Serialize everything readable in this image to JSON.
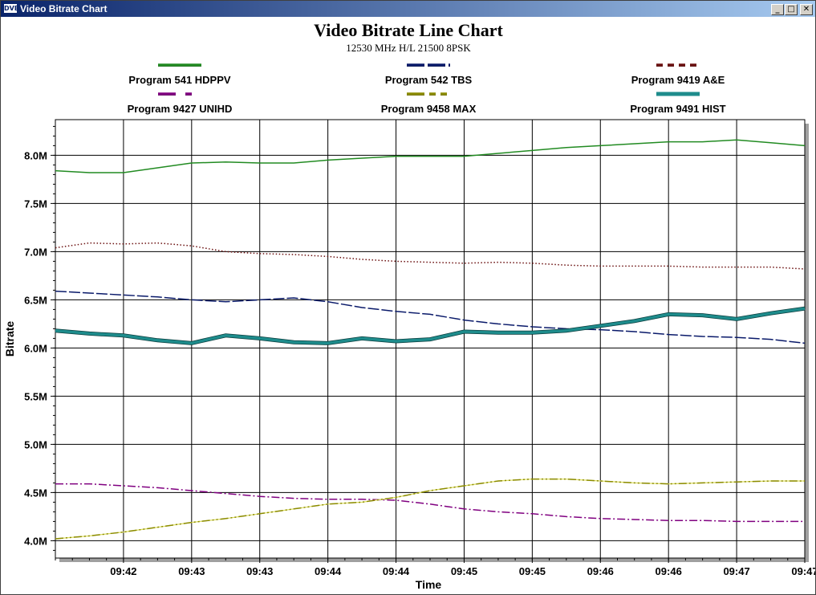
{
  "window": {
    "title": "Video Bitrate Chart",
    "icon_text": "DVB",
    "minimize_glyph": "_",
    "maximize_glyph": "□",
    "close_glyph": "✕"
  },
  "chart_data": {
    "type": "line",
    "title": "Video Bitrate Line Chart",
    "subtitle": "12530 MHz H/L 21500 8PSK",
    "xlabel": "Time",
    "ylabel": "Bitrate",
    "x_ticks": [
      "09:42",
      "09:43",
      "09:43",
      "09:44",
      "09:44",
      "09:45",
      "09:45",
      "09:46",
      "09:46",
      "09:47",
      "09:47"
    ],
    "y_ticks": [
      {
        "value": 4.0,
        "label": "4.0M"
      },
      {
        "value": 4.5,
        "label": "4.5M"
      },
      {
        "value": 5.0,
        "label": "5.0M"
      },
      {
        "value": 5.5,
        "label": "5.5M"
      },
      {
        "value": 6.0,
        "label": "6.0M"
      },
      {
        "value": 6.5,
        "label": "6.5M"
      },
      {
        "value": 7.0,
        "label": "7.0M"
      },
      {
        "value": 7.5,
        "label": "7.5M"
      },
      {
        "value": 8.0,
        "label": "8.0M"
      }
    ],
    "ylim": [
      3.82,
      8.37
    ],
    "xlim": [
      0,
      11.0
    ],
    "grid": true,
    "legend_position": "top",
    "series": [
      {
        "name": "Program 541 HDPPV",
        "color": "#228b22",
        "style": "solid",
        "width": 1.5,
        "x": [
          0,
          0.5,
          1,
          1.5,
          2,
          2.5,
          3,
          3.5,
          4,
          4.5,
          5,
          5.5,
          6,
          6.5,
          7,
          7.5,
          8,
          8.5,
          9,
          9.5,
          10,
          10.5,
          11
        ],
        "y": [
          7.84,
          7.82,
          7.82,
          7.87,
          7.92,
          7.93,
          7.92,
          7.92,
          7.95,
          7.97,
          7.99,
          7.99,
          7.99,
          8.02,
          8.05,
          8.08,
          8.1,
          8.12,
          8.14,
          8.14,
          8.16,
          8.13,
          8.1
        ]
      },
      {
        "name": "Program 542 TBS",
        "color": "#0a1a6a",
        "style": "longdash",
        "width": 1.5,
        "x": [
          0,
          0.5,
          1,
          1.5,
          2,
          2.5,
          3,
          3.5,
          4,
          4.5,
          5,
          5.5,
          6,
          6.5,
          7,
          7.5,
          8,
          8.5,
          9,
          9.5,
          10,
          10.5,
          11
        ],
        "y": [
          6.59,
          6.57,
          6.55,
          6.53,
          6.5,
          6.48,
          6.5,
          6.52,
          6.48,
          6.42,
          6.38,
          6.35,
          6.29,
          6.25,
          6.22,
          6.2,
          6.19,
          6.17,
          6.14,
          6.12,
          6.11,
          6.09,
          6.05
        ]
      },
      {
        "name": "Program 9419 A&E",
        "color": "#6b1010",
        "style": "dotted",
        "width": 1.5,
        "x": [
          0,
          0.5,
          1,
          1.5,
          2,
          2.5,
          3,
          3.5,
          4,
          4.5,
          5,
          5.5,
          6,
          6.5,
          7,
          7.5,
          8,
          8.5,
          9,
          9.5,
          10,
          10.5,
          11
        ],
        "y": [
          7.04,
          7.09,
          7.08,
          7.09,
          7.06,
          7.0,
          6.98,
          6.97,
          6.95,
          6.92,
          6.9,
          6.89,
          6.88,
          6.89,
          6.88,
          6.86,
          6.85,
          6.85,
          6.85,
          6.84,
          6.84,
          6.84,
          6.82
        ]
      },
      {
        "name": "Program 9427 UNIHD",
        "color": "#800080",
        "style": "dashdot",
        "width": 1.5,
        "x": [
          0,
          0.5,
          1,
          1.5,
          2,
          2.5,
          3,
          3.5,
          4,
          4.5,
          5,
          5.5,
          6,
          6.5,
          7,
          7.5,
          8,
          8.5,
          9,
          9.5,
          10,
          10.5,
          11
        ],
        "y": [
          4.59,
          4.59,
          4.57,
          4.55,
          4.52,
          4.49,
          4.46,
          4.44,
          4.43,
          4.43,
          4.42,
          4.38,
          4.33,
          4.3,
          4.28,
          4.25,
          4.23,
          4.22,
          4.21,
          4.21,
          4.2,
          4.2,
          4.2
        ]
      },
      {
        "name": "Program 9458 MAX",
        "color": "#8b8b00",
        "style": "dashdotdot",
        "width": 1.5,
        "x": [
          0,
          0.5,
          1,
          1.5,
          2,
          2.5,
          3,
          3.5,
          4,
          4.5,
          5,
          5.5,
          6,
          6.5,
          7,
          7.5,
          8,
          8.5,
          9,
          9.5,
          10,
          10.5,
          11
        ],
        "y": [
          4.02,
          4.05,
          4.09,
          4.14,
          4.19,
          4.23,
          4.28,
          4.33,
          4.38,
          4.4,
          4.45,
          4.52,
          4.57,
          4.62,
          4.64,
          4.64,
          4.62,
          4.6,
          4.59,
          4.6,
          4.61,
          4.62,
          4.62
        ]
      },
      {
        "name": "Program 9491 HIST",
        "color": "#1e8c8c",
        "style": "thick",
        "width": 3.5,
        "x": [
          0,
          0.5,
          1,
          1.5,
          2,
          2.5,
          3,
          3.5,
          4,
          4.5,
          5,
          5.5,
          6,
          6.5,
          7,
          7.5,
          8,
          8.5,
          9,
          9.5,
          10,
          10.5,
          11
        ],
        "y": [
          6.18,
          6.15,
          6.13,
          6.08,
          6.05,
          6.13,
          6.1,
          6.06,
          6.05,
          6.1,
          6.07,
          6.09,
          6.17,
          6.16,
          6.16,
          6.18,
          6.23,
          6.28,
          6.35,
          6.34,
          6.3,
          6.36,
          6.41
        ]
      }
    ]
  }
}
